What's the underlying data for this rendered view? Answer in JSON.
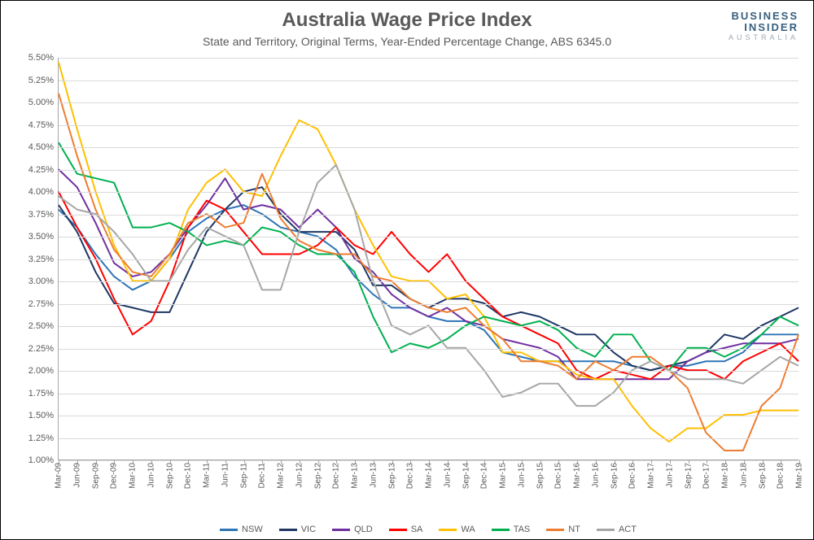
{
  "title": "Australia Wage Price Index",
  "subtitle": "State and Territory, Original Terms, Year-Ended Percentage Change, ABS 6345.0",
  "brand": {
    "line1": "BUSINESS",
    "line2": "INSIDER",
    "line3": "AUSTRALIA"
  },
  "chart": {
    "type": "line",
    "background_color": "#ffffff",
    "grid_color": "#d9d9d9",
    "axis_color": "#a6a6a6",
    "label_color": "#595959",
    "title_fontsize": 24,
    "subtitle_fontsize": 14,
    "axis_fontsize": 11,
    "line_width": 2,
    "y": {
      "min": 1.0,
      "max": 5.5,
      "step": 0.25,
      "fmt_pct": true
    },
    "x_labels": [
      "Mar-09",
      "Jun-09",
      "Sep-09",
      "Dec-09",
      "Mar-10",
      "Jun-10",
      "Sep-10",
      "Dec-10",
      "Mar-11",
      "Jun-11",
      "Sep-11",
      "Dec-11",
      "Mar-12",
      "Jun-12",
      "Sep-12",
      "Dec-12",
      "Mar-13",
      "Jun-13",
      "Sep-13",
      "Dec-13",
      "Mar-14",
      "Jun-14",
      "Sep-14",
      "Dec-14",
      "Mar-15",
      "Jun-15",
      "Sep-15",
      "Dec-15",
      "Mar-16",
      "Jun-16",
      "Sep-16",
      "Dec-16",
      "Mar-17",
      "Jun-17",
      "Sep-17",
      "Dec-17",
      "Mar-18",
      "Jun-18",
      "Sep-18",
      "Dec-18",
      "Mar-19"
    ],
    "series": [
      {
        "name": "NSW",
        "color": "#2e75b6",
        "values": [
          3.8,
          3.6,
          3.3,
          3.05,
          2.9,
          3.0,
          3.25,
          3.55,
          3.7,
          3.8,
          3.85,
          3.75,
          3.6,
          3.55,
          3.5,
          3.35,
          3.05,
          2.85,
          2.7,
          2.7,
          2.6,
          2.55,
          2.55,
          2.45,
          2.2,
          2.15,
          2.1,
          2.1,
          2.1,
          2.1,
          2.1,
          2.05,
          2.0,
          2.05,
          2.05,
          2.1,
          2.1,
          2.2,
          2.4,
          2.4,
          2.4
        ]
      },
      {
        "name": "VIC",
        "color": "#1f3864",
        "values": [
          3.85,
          3.55,
          3.1,
          2.75,
          2.7,
          2.65,
          2.65,
          3.1,
          3.55,
          3.8,
          4.0,
          4.05,
          3.75,
          3.55,
          3.55,
          3.55,
          3.35,
          2.95,
          2.95,
          2.8,
          2.7,
          2.8,
          2.8,
          2.75,
          2.6,
          2.65,
          2.6,
          2.5,
          2.4,
          2.4,
          2.2,
          2.05,
          2.0,
          2.05,
          2.1,
          2.2,
          2.4,
          2.35,
          2.5,
          2.6,
          2.7
        ]
      },
      {
        "name": "QLD",
        "color": "#7030a0",
        "values": [
          4.25,
          4.05,
          3.65,
          3.2,
          3.05,
          3.1,
          3.3,
          3.6,
          3.85,
          4.15,
          3.8,
          3.85,
          3.8,
          3.6,
          3.8,
          3.6,
          3.25,
          3.1,
          2.85,
          2.7,
          2.6,
          2.7,
          2.55,
          2.5,
          2.35,
          2.3,
          2.25,
          2.15,
          1.9,
          1.9,
          1.9,
          1.9,
          1.9,
          1.9,
          2.1,
          2.2,
          2.25,
          2.3,
          2.3,
          2.3,
          2.35
        ]
      },
      {
        "name": "SA",
        "color": "#ff0000",
        "values": [
          4.0,
          3.6,
          3.25,
          2.8,
          2.4,
          2.55,
          3.0,
          3.6,
          3.9,
          3.8,
          3.55,
          3.3,
          3.3,
          3.3,
          3.4,
          3.6,
          3.4,
          3.3,
          3.55,
          3.3,
          3.1,
          3.3,
          3.0,
          2.8,
          2.6,
          2.5,
          2.4,
          2.3,
          2.0,
          1.9,
          2.0,
          1.95,
          1.9,
          2.05,
          2.0,
          2.0,
          1.9,
          2.1,
          2.2,
          2.3,
          2.1
        ]
      },
      {
        "name": "WA",
        "color": "#ffc000",
        "values": [
          5.45,
          4.7,
          4.0,
          3.4,
          3.0,
          3.0,
          3.25,
          3.8,
          4.1,
          4.25,
          4.0,
          3.95,
          4.4,
          4.8,
          4.7,
          4.3,
          3.8,
          3.4,
          3.05,
          3.0,
          3.0,
          2.8,
          2.85,
          2.6,
          2.2,
          2.2,
          2.1,
          2.1,
          1.95,
          1.9,
          1.9,
          1.6,
          1.35,
          1.2,
          1.35,
          1.35,
          1.5,
          1.5,
          1.55,
          1.55,
          1.55
        ]
      },
      {
        "name": "TAS",
        "color": "#00b050",
        "values": [
          4.55,
          4.2,
          4.15,
          4.1,
          3.6,
          3.6,
          3.65,
          3.55,
          3.4,
          3.45,
          3.4,
          3.6,
          3.55,
          3.4,
          3.3,
          3.3,
          3.1,
          2.6,
          2.2,
          2.3,
          2.25,
          2.35,
          2.5,
          2.6,
          2.55,
          2.5,
          2.55,
          2.45,
          2.25,
          2.15,
          2.4,
          2.4,
          2.1,
          2.0,
          2.25,
          2.25,
          2.15,
          2.25,
          2.4,
          2.6,
          2.5
        ]
      },
      {
        "name": "NT",
        "color": "#ed7d31",
        "values": [
          5.1,
          4.4,
          3.8,
          3.35,
          3.1,
          3.05,
          3.3,
          3.65,
          3.75,
          3.6,
          3.65,
          4.2,
          3.7,
          3.45,
          3.35,
          3.3,
          3.3,
          3.05,
          3.0,
          2.8,
          2.7,
          2.65,
          2.7,
          2.5,
          2.35,
          2.1,
          2.1,
          2.05,
          1.9,
          2.1,
          2.0,
          2.15,
          2.15,
          2.0,
          1.8,
          1.3,
          1.1,
          1.1,
          1.6,
          1.8,
          2.4
        ]
      },
      {
        "name": "ACT",
        "color": "#a6a6a6",
        "values": [
          3.95,
          3.8,
          3.75,
          3.55,
          3.3,
          3.0,
          3.0,
          3.35,
          3.6,
          3.5,
          3.4,
          2.9,
          2.9,
          3.55,
          4.1,
          4.3,
          3.8,
          3.0,
          2.5,
          2.4,
          2.5,
          2.25,
          2.25,
          2.0,
          1.7,
          1.75,
          1.85,
          1.85,
          1.6,
          1.6,
          1.75,
          2.0,
          2.1,
          2.0,
          1.9,
          1.9,
          1.9,
          1.85,
          2.0,
          2.15,
          2.05
        ]
      }
    ]
  }
}
